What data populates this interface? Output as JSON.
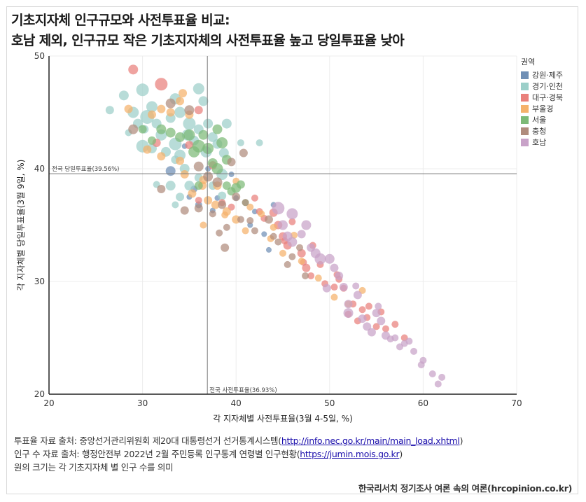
{
  "title_line1": "기초지자체 인구규모와 사전투표율 비교:",
  "title_line2": "호남 제외, 인구규모 작은 기초지자체의 사전투표율 높고 당일투표율 낮아",
  "chart_data": {
    "type": "scatter",
    "xlabel": "각 지자체별 사전투표율(3월 4-5일, %)",
    "ylabel": "각 지자체별 당일투표율(3월 9일, %)",
    "xlim": [
      20,
      70
    ],
    "ylim": [
      20,
      50
    ],
    "xticks": [
      20,
      30,
      40,
      50,
      60,
      70
    ],
    "yticks": [
      20,
      30,
      40,
      50
    ],
    "grid": true,
    "legend_title": "권역",
    "legend_position": "top-right",
    "reference_lines": [
      {
        "axis": "y",
        "value": 39.56,
        "label": "전국 당일투표율(39.56%)"
      },
      {
        "axis": "x",
        "value": 36.93,
        "label": "전국 사전투표율(36.93%)"
      }
    ],
    "series": [
      {
        "name": "강원·제주",
        "color": "#6f8fb5",
        "points": [
          [
            33,
            39.8,
            5
          ],
          [
            35.5,
            38.2,
            3
          ],
          [
            36,
            36.8,
            3
          ],
          [
            38,
            37.4,
            2
          ],
          [
            37,
            40,
            2
          ],
          [
            40,
            37.4,
            2
          ],
          [
            41.5,
            35,
            2
          ],
          [
            42,
            36.2,
            2
          ],
          [
            43,
            34.2,
            2
          ],
          [
            43.5,
            32.8,
            2
          ],
          [
            44,
            36.8,
            2
          ],
          [
            39.5,
            39.5,
            2
          ],
          [
            34.5,
            42,
            2
          ],
          [
            37.5,
            36.3,
            2
          ],
          [
            35,
            37.5,
            2
          ]
        ]
      },
      {
        "name": "경기·인천",
        "color": "#9ccfc9",
        "points": [
          [
            26.5,
            45.2,
            4
          ],
          [
            28,
            46.5,
            5
          ],
          [
            29,
            45,
            6
          ],
          [
            30,
            47,
            7
          ],
          [
            30.5,
            44.6,
            8
          ],
          [
            31,
            45.5,
            6
          ],
          [
            29.5,
            44,
            5
          ],
          [
            30,
            42,
            7
          ],
          [
            31.5,
            44,
            5
          ],
          [
            32,
            43,
            6
          ],
          [
            33,
            44.5,
            5
          ],
          [
            33.5,
            46.2,
            6
          ],
          [
            34,
            45,
            6
          ],
          [
            35,
            44,
            7
          ],
          [
            35.5,
            42.5,
            5
          ],
          [
            36,
            47.1,
            6
          ],
          [
            36.5,
            46,
            5
          ],
          [
            37,
            44,
            5
          ],
          [
            32.5,
            41.5,
            5
          ],
          [
            34,
            41.2,
            6
          ],
          [
            33,
            38.5,
            5
          ],
          [
            34.5,
            40,
            5
          ],
          [
            36,
            43.5,
            5
          ],
          [
            38,
            42.2,
            5
          ],
          [
            38.5,
            39.5,
            6
          ],
          [
            39,
            44,
            5
          ],
          [
            35,
            38.5,
            5
          ],
          [
            37.5,
            38.5,
            4
          ],
          [
            40.5,
            42.3,
            3
          ],
          [
            42.5,
            42.3,
            3
          ],
          [
            31,
            41.8,
            5
          ],
          [
            33.5,
            42.2,
            7
          ],
          [
            34.8,
            43,
            6
          ],
          [
            36.8,
            41.5,
            6
          ],
          [
            37.5,
            42.8,
            5
          ],
          [
            38.7,
            41.4,
            5
          ],
          [
            28.5,
            43.2,
            3
          ],
          [
            38.5,
            37.6,
            4
          ],
          [
            34,
            37.5,
            4
          ],
          [
            33.5,
            36.8,
            3
          ],
          [
            36,
            39.2,
            4
          ],
          [
            31.5,
            38.6,
            3
          ],
          [
            33.5,
            40.8,
            4
          ],
          [
            30.2,
            43.5,
            4
          ]
        ]
      },
      {
        "name": "대구·경북",
        "color": "#e9807b",
        "points": [
          [
            32,
            47.5,
            7
          ],
          [
            29,
            48.8,
            5
          ],
          [
            36,
            45.2,
            4
          ],
          [
            31.5,
            42.3,
            4
          ],
          [
            35,
            42.1,
            4
          ],
          [
            37.5,
            40.3,
            4
          ],
          [
            42.5,
            36.2,
            3
          ],
          [
            43,
            35.6,
            3
          ],
          [
            44.5,
            35,
            4
          ],
          [
            45,
            34,
            4
          ],
          [
            45.5,
            33.2,
            4
          ],
          [
            47,
            32.5,
            4
          ],
          [
            47.5,
            31.2,
            4
          ],
          [
            48,
            30.5,
            3
          ],
          [
            49,
            31.5,
            3
          ],
          [
            50.5,
            29.5,
            3
          ],
          [
            51,
            30.2,
            3
          ],
          [
            52.5,
            28,
            3
          ],
          [
            53.5,
            27.5,
            3
          ],
          [
            54,
            26.8,
            3
          ],
          [
            55.5,
            27.3,
            3
          ],
          [
            56,
            25.8,
            3
          ],
          [
            57,
            26.2,
            3
          ],
          [
            58,
            25,
            3
          ],
          [
            44,
            36.1,
            4
          ],
          [
            42,
            37.4,
            3
          ],
          [
            46,
            35.3,
            3
          ],
          [
            38.5,
            37,
            3
          ],
          [
            39.5,
            36.6,
            3
          ],
          [
            36,
            37.2,
            3
          ],
          [
            52,
            27.1,
            3
          ],
          [
            53,
            26.5,
            3
          ],
          [
            55,
            26,
            3
          ],
          [
            49.5,
            29.8,
            3
          ],
          [
            48.2,
            33.2,
            3
          ],
          [
            45.2,
            33.6,
            3
          ],
          [
            50.8,
            30.6,
            3
          ],
          [
            51.5,
            29.4,
            3
          ],
          [
            54.2,
            27.8,
            3
          ],
          [
            47.2,
            31.7,
            3
          ]
        ]
      },
      {
        "name": "부울경",
        "color": "#f5b26b",
        "points": [
          [
            28.5,
            45.3,
            4
          ],
          [
            31,
            44.8,
            4
          ],
          [
            32,
            45.3,
            4
          ],
          [
            33,
            45,
            4
          ],
          [
            34,
            46,
            4
          ],
          [
            35,
            44.8,
            4
          ],
          [
            34.3,
            46.7,
            4
          ],
          [
            32,
            41.1,
            4
          ],
          [
            34,
            40.7,
            4
          ],
          [
            36.5,
            39,
            4
          ],
          [
            37,
            37.2,
            4
          ],
          [
            38,
            38.5,
            4
          ],
          [
            39,
            36.2,
            4
          ],
          [
            40,
            35.5,
            4
          ],
          [
            41,
            34.5,
            3
          ],
          [
            36.5,
            35,
            3
          ],
          [
            41.5,
            36.6,
            3
          ],
          [
            44,
            34.8,
            3
          ],
          [
            45,
            32.5,
            3
          ],
          [
            47,
            31.8,
            3
          ],
          [
            52,
            28,
            3
          ],
          [
            53.5,
            29.2,
            3
          ],
          [
            30.5,
            41.7,
            4
          ],
          [
            34.5,
            39.5,
            4
          ],
          [
            35.3,
            37.8,
            4
          ],
          [
            36.4,
            38.5,
            4
          ],
          [
            37.8,
            36.8,
            4
          ],
          [
            40,
            38.9,
            3
          ],
          [
            42.7,
            36,
            3
          ],
          [
            38.8,
            35.9,
            3
          ],
          [
            46.2,
            34.1,
            3
          ],
          [
            43.7,
            33.8,
            3
          ],
          [
            48.8,
            30.3,
            3
          ],
          [
            50.5,
            28.6,
            3
          ]
        ]
      },
      {
        "name": "서울",
        "color": "#7dba77",
        "points": [
          [
            30,
            43.5,
            4
          ],
          [
            31,
            42.5,
            4
          ],
          [
            32,
            43.5,
            5
          ],
          [
            33,
            43.2,
            5
          ],
          [
            34,
            42.8,
            5
          ],
          [
            35,
            43,
            6
          ],
          [
            35.5,
            41.5,
            6
          ],
          [
            36,
            42,
            7
          ],
          [
            36.5,
            43,
            5
          ],
          [
            37,
            41.8,
            6
          ],
          [
            37.5,
            40.5,
            5
          ],
          [
            38,
            43.5,
            5
          ],
          [
            38.5,
            42.3,
            6
          ],
          [
            39,
            40.8,
            5
          ],
          [
            40,
            38.3,
            5
          ],
          [
            40.5,
            38.6,
            4
          ],
          [
            41,
            37,
            3
          ],
          [
            39.5,
            38,
            4
          ],
          [
            36,
            38.5,
            4
          ],
          [
            38,
            40,
            6
          ],
          [
            39,
            38.5,
            4
          ]
        ]
      },
      {
        "name": "충청",
        "color": "#b08c7d",
        "points": [
          [
            29,
            43.5,
            5
          ],
          [
            33,
            45.8,
            5
          ],
          [
            35,
            45.2,
            5
          ],
          [
            36,
            40.2,
            5
          ],
          [
            37,
            39.3,
            5
          ],
          [
            38,
            38.8,
            5
          ],
          [
            36,
            36.5,
            4
          ],
          [
            37.5,
            36,
            3
          ],
          [
            38.5,
            36.8,
            4
          ],
          [
            40,
            37.5,
            4
          ],
          [
            39,
            34.8,
            3
          ],
          [
            38.8,
            33,
            4
          ],
          [
            40.5,
            35.5,
            3
          ],
          [
            41,
            37,
            3
          ],
          [
            42,
            34.5,
            3
          ],
          [
            44,
            34,
            3
          ],
          [
            46,
            32.2,
            3
          ],
          [
            45.5,
            31.5,
            3
          ],
          [
            44.5,
            33.5,
            3
          ],
          [
            34.5,
            36.3,
            4
          ],
          [
            32,
            38.2,
            4
          ],
          [
            39.5,
            40.6,
            4
          ],
          [
            43.5,
            35.5,
            4
          ],
          [
            40.8,
            41.4,
            4
          ],
          [
            38.2,
            34.3,
            3
          ],
          [
            47.4,
            30.5,
            3
          ],
          [
            46.8,
            33,
            3
          ],
          [
            41.5,
            35.4,
            3
          ]
        ]
      },
      {
        "name": "호남",
        "color": "#c8a2c8",
        "points": [
          [
            44.5,
            36.5,
            7
          ],
          [
            45,
            35,
            5
          ],
          [
            46,
            36,
            6
          ],
          [
            47.5,
            35,
            5
          ],
          [
            45.5,
            34,
            5
          ],
          [
            46,
            33.5,
            5
          ],
          [
            48.5,
            32.5,
            5
          ],
          [
            49,
            32,
            6
          ],
          [
            50,
            32,
            5
          ],
          [
            51,
            30.5,
            4
          ],
          [
            51.5,
            29.5,
            4
          ],
          [
            52,
            28,
            4
          ],
          [
            53,
            28.8,
            4
          ],
          [
            52,
            27.2,
            5
          ],
          [
            54,
            26,
            4
          ],
          [
            55,
            27.2,
            4
          ],
          [
            55.5,
            26.5,
            4
          ],
          [
            56,
            25.2,
            4
          ],
          [
            57,
            25,
            3
          ],
          [
            58,
            24.5,
            3
          ],
          [
            59,
            23.8,
            3
          ],
          [
            60,
            23,
            3
          ],
          [
            61,
            21.8,
            3
          ],
          [
            62,
            21.5,
            3
          ],
          [
            47,
            34.2,
            4
          ],
          [
            48,
            33,
            4
          ],
          [
            53.5,
            26.7,
            4
          ],
          [
            54.5,
            25.5,
            4
          ],
          [
            56.5,
            24.9,
            3
          ],
          [
            57.5,
            24.2,
            3
          ],
          [
            50.5,
            31.2,
            4
          ],
          [
            49.7,
            29.4,
            4
          ],
          [
            55.2,
            27.8,
            3
          ],
          [
            58.5,
            24.7,
            3
          ],
          [
            59.8,
            22.6,
            3
          ],
          [
            61.6,
            20.9,
            3
          ],
          [
            52.8,
            29.6,
            3
          ]
        ]
      }
    ]
  },
  "sources": {
    "line1_prefix": "투표율 자료 출처: 중앙선거관리위원회 제20대 대통령선거 선거통계시스템(",
    "line1_link": "http://info.nec.go.kr/main/main_load.xhtml",
    "line1_suffix": ")",
    "line2_prefix": "인구 수 자료 출처: 행정안전부 2022년 2월 주민등록 인구통계 연령별 인구현황(",
    "line2_link": "https://jumin.mois.go.kr",
    "line2_suffix": ")",
    "line3": "원의 크기는 각 기초지자체 별 인구 수를 의미"
  },
  "credit": "한국리서치 정기조사 여론 속의 여론(hrcopinion.co.kr)"
}
